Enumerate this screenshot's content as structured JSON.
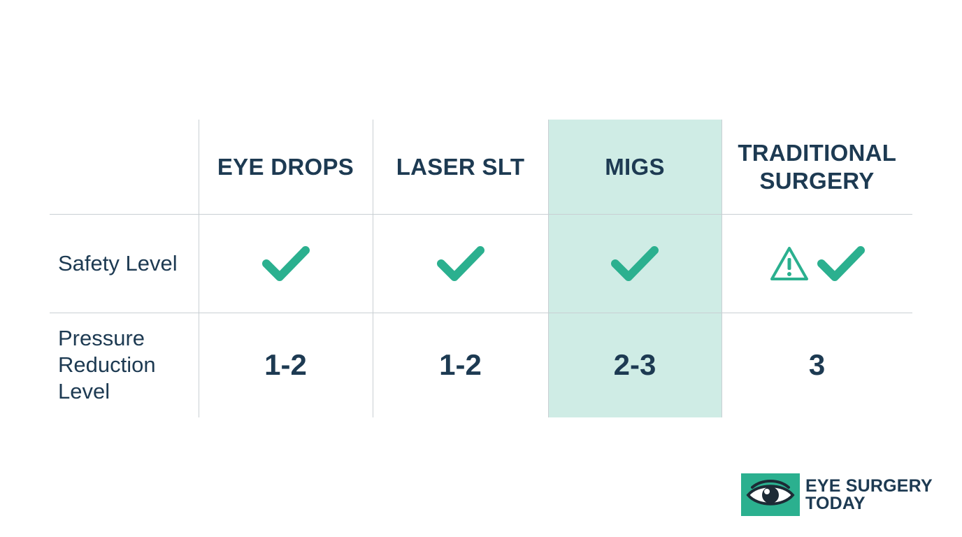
{
  "table": {
    "columns": [
      {
        "label": "EYE DROPS",
        "highlighted": false
      },
      {
        "label": "LASER SLT",
        "highlighted": false
      },
      {
        "label": "MIGS",
        "highlighted": true
      },
      {
        "label": "TRADITIONAL SURGERY",
        "highlighted": false
      }
    ],
    "rows": [
      {
        "label": "Safety Level",
        "cells": [
          {
            "icons": [
              "check-icon"
            ]
          },
          {
            "icons": [
              "check-icon"
            ]
          },
          {
            "icons": [
              "check-icon"
            ]
          },
          {
            "icons": [
              "warning-icon",
              "check-icon"
            ]
          }
        ]
      },
      {
        "label": "Pressure Reduction Level",
        "cells": [
          "1-2",
          "1-2",
          "2-3",
          "3"
        ]
      }
    ]
  },
  "logo": {
    "line1": "EYE SURGERY",
    "line2": "TODAY",
    "icon": "eye-icon"
  },
  "colors": {
    "accent": "#2bb08f",
    "highlight": "#cfece5",
    "text": "#1d3a52",
    "grid": "#c9cfd3"
  }
}
